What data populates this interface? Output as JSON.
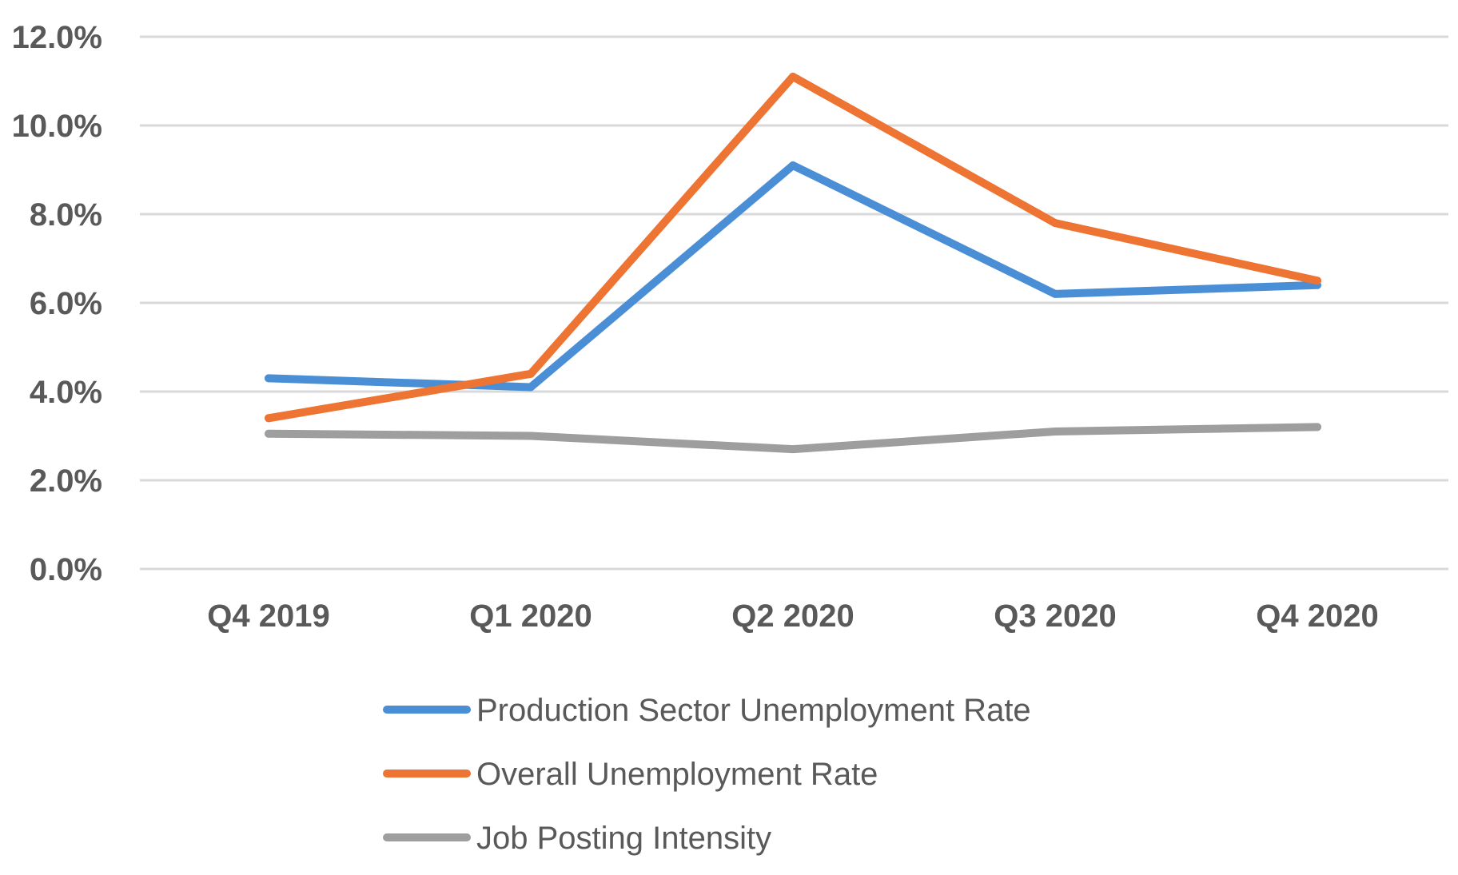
{
  "chart_data": {
    "type": "line",
    "title": "",
    "xlabel": "",
    "ylabel": "",
    "categories": [
      "Q4 2019",
      "Q1 2020",
      "Q2 2020",
      "Q3 2020",
      "Q4 2020"
    ],
    "y_tick_labels": [
      "0.0%",
      "2.0%",
      "4.0%",
      "6.0%",
      "8.0%",
      "10.0%",
      "12.0%"
    ],
    "ylim": [
      0,
      12
    ],
    "y_unit": "%",
    "grid": true,
    "legend_position": "bottom",
    "series": [
      {
        "name": "Production Sector Unemployment Rate",
        "color": "#4a8fd6",
        "values": [
          4.3,
          4.1,
          9.1,
          6.2,
          6.4
        ]
      },
      {
        "name": "Overall Unemployment Rate",
        "color": "#ed7432",
        "values": [
          3.4,
          4.4,
          11.1,
          7.8,
          6.5
        ]
      },
      {
        "name": "Job Posting Intensity",
        "color": "#9e9e9e",
        "values": [
          3.05,
          3.0,
          2.7,
          3.1,
          3.2
        ]
      }
    ]
  }
}
